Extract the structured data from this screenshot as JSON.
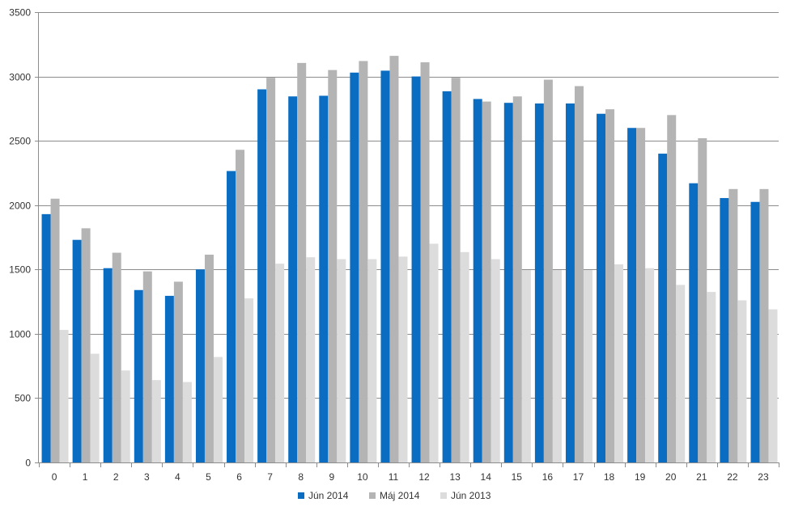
{
  "chart_data": {
    "type": "bar",
    "title": "",
    "xlabel": "",
    "ylabel": "",
    "categories": [
      "0",
      "1",
      "2",
      "3",
      "4",
      "5",
      "6",
      "7",
      "8",
      "9",
      "10",
      "11",
      "12",
      "13",
      "14",
      "15",
      "16",
      "17",
      "18",
      "19",
      "20",
      "21",
      "22",
      "23"
    ],
    "ylim": [
      0,
      3500
    ],
    "yticks": [
      0,
      500,
      1000,
      1500,
      2000,
      2500,
      3000,
      3500
    ],
    "grid": true,
    "legend_position": "bottom",
    "series": [
      {
        "name": "Jún 2014",
        "color": "#0A6DC2",
        "values": [
          1930,
          1730,
          1510,
          1340,
          1295,
          1500,
          2265,
          2900,
          2845,
          2850,
          3030,
          3045,
          3000,
          2885,
          2825,
          2795,
          2790,
          2790,
          2710,
          2600,
          2400,
          2170,
          2055,
          2025
        ]
      },
      {
        "name": "Máj 2014",
        "color": "#B4B4B4",
        "values": [
          2050,
          1820,
          1630,
          1485,
          1405,
          1615,
          2430,
          2990,
          3105,
          3050,
          3120,
          3160,
          3110,
          2990,
          2805,
          2845,
          2975,
          2925,
          2745,
          2600,
          2700,
          2520,
          2125,
          2125
        ]
      },
      {
        "name": "Jún 2013",
        "color": "#DCDCDC",
        "values": [
          1030,
          845,
          715,
          640,
          625,
          820,
          1275,
          1545,
          1595,
          1580,
          1580,
          1600,
          1700,
          1635,
          1580,
          1495,
          1495,
          1495,
          1540,
          1510,
          1380,
          1325,
          1260,
          1190
        ]
      }
    ]
  }
}
